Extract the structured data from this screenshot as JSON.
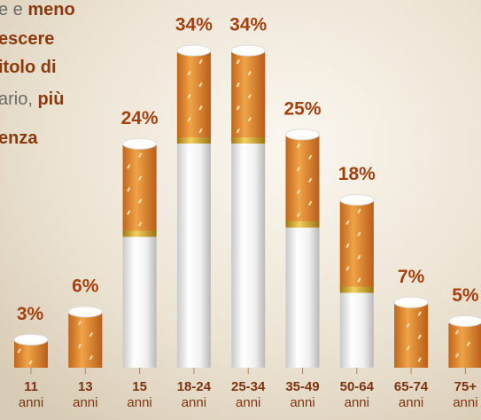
{
  "chart_data": {
    "type": "bar",
    "intro_lines": [
      [
        {
          "text": "e e ",
          "bold": false
        },
        {
          "text": "meno",
          "bold": true
        }
      ],
      [
        {
          "text": "escere",
          "bold": true
        }
      ],
      [
        {
          "text": "itolo di",
          "bold": true
        }
      ],
      [
        {
          "text": "ario, ",
          "bold": false
        },
        {
          "text": "più",
          "bold": true
        }
      ],
      [
        {
          "text": "enza",
          "bold": true
        }
      ]
    ],
    "categories": [
      "11",
      "13",
      "15",
      "18-24",
      "25-34",
      "35-49",
      "50-64",
      "65-74",
      "75+"
    ],
    "category_sublabels": [
      "anni",
      "anni",
      "anni",
      "anni",
      "anni",
      "anni",
      "anni",
      "anni",
      "anni"
    ],
    "values": [
      3,
      6,
      24,
      34,
      34,
      25,
      18,
      7,
      5
    ],
    "value_labels": [
      "3%",
      "6%",
      "24%",
      "34%",
      "34%",
      "25%",
      "18%",
      "7%",
      "5%"
    ],
    "color": "#e8962e"
  }
}
